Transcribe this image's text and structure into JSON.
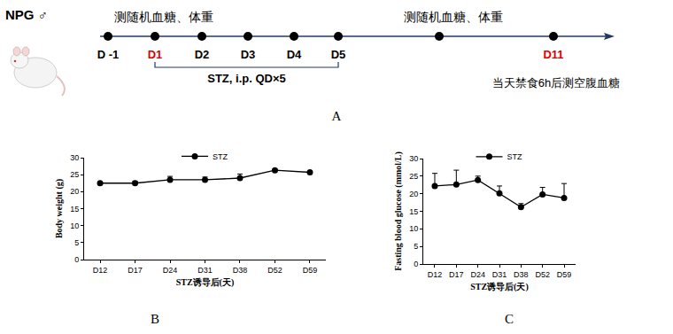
{
  "timeline": {
    "title": "NPG ♂",
    "notes": [
      "测随机血糖、体重",
      "测随机血糖、体重"
    ],
    "points": [
      {
        "label": "D -1",
        "color": "#000000"
      },
      {
        "label": "D1",
        "color": "#e00000"
      },
      {
        "label": "D2",
        "color": "#000000"
      },
      {
        "label": "D3",
        "color": "#000000"
      },
      {
        "label": "D4",
        "color": "#000000"
      },
      {
        "label": "D5",
        "color": "#000000"
      },
      {
        "label": null,
        "color": "#000000"
      },
      {
        "label": "D11",
        "color": "#e00000"
      }
    ],
    "treatment": {
      "text": "STZ, i.p. QD×5",
      "from": "D1",
      "to": "D5"
    },
    "footnote": "当天禁食6h后测空腹血糖",
    "caption": "A"
  },
  "chart_data": [
    {
      "type": "line",
      "caption": "B",
      "x_label": "STZ诱导后(天)",
      "y_label": "Body weight (g)",
      "categories": [
        "D12",
        "D17",
        "D24",
        "D31",
        "D38",
        "D52",
        "D59"
      ],
      "series": [
        {
          "name": "STZ",
          "color": "#000000",
          "marker": "circle",
          "values": [
            22.5,
            22.5,
            23.5,
            23.5,
            24.0,
            26.3,
            25.7
          ],
          "errors": [
            0.3,
            0.6,
            1.0,
            0.8,
            1.2,
            0.3,
            0.3
          ]
        }
      ],
      "ylim": [
        0,
        30
      ],
      "yticks": [
        0,
        5,
        10,
        15,
        20,
        25,
        30
      ],
      "legend": "top",
      "grid": false
    },
    {
      "type": "line",
      "caption": "C",
      "x_label": "STZ诱导后(天)",
      "y_label": "Fasting blood glucose (mmol/L)",
      "categories": [
        "D12",
        "D17",
        "D24",
        "D31",
        "D38",
        "D52",
        "D59"
      ],
      "series": [
        {
          "name": "STZ",
          "color": "#000000",
          "marker": "circle",
          "values": [
            22.2,
            22.6,
            23.9,
            20.1,
            16.2,
            19.8,
            18.8
          ],
          "errors": [
            3.6,
            4.1,
            1.1,
            2.1,
            1.0,
            2.0,
            4.1
          ]
        }
      ],
      "ylim": [
        0,
        30
      ],
      "yticks": [
        0,
        5,
        10,
        15,
        20,
        25,
        30
      ],
      "legend": "top",
      "grid": false
    }
  ]
}
